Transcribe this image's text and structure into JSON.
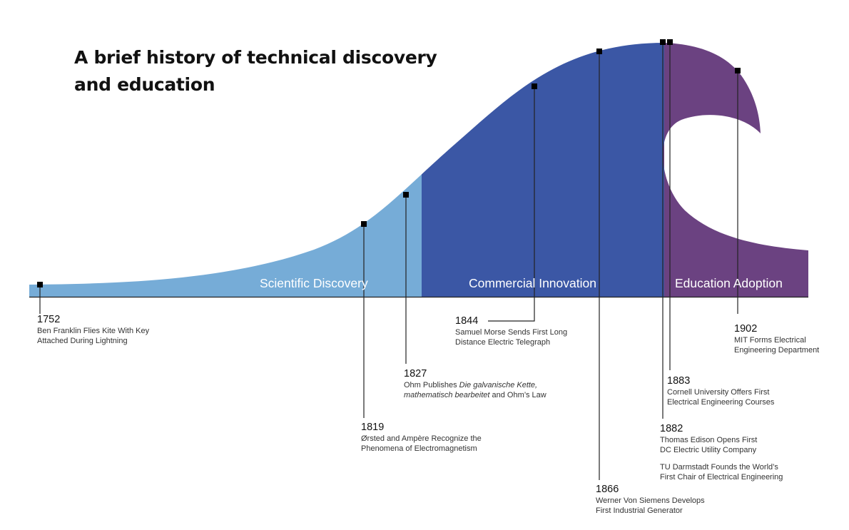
{
  "title_line1": "A brief history of technical discovery",
  "title_line2": "and education",
  "colors": {
    "scientific": "#76acd7",
    "commercial": "#3b57a5",
    "education": "#6b4281",
    "line": "#222222",
    "marker": "#000000"
  },
  "phases": [
    {
      "label": "Scientific Discovery"
    },
    {
      "label": "Commercial Innovation"
    },
    {
      "label": "Education Adoption"
    }
  ],
  "events": [
    {
      "year": "1752",
      "desc1": "Ben Franklin Flies Kite With Key",
      "desc2": "Attached During Lightning"
    },
    {
      "year": "1819",
      "desc1": "Ørsted and Ampère Recognize the",
      "desc2": "Phenomena of Electromagnetism"
    },
    {
      "year": "1827",
      "desc1_prefix": "Ohm Publishes ",
      "desc1_italic": "Die galvanische Kette,",
      "desc2_italic": "mathematisch bearbeitet",
      "desc2_suffix": " and Ohm’s Law"
    },
    {
      "year": "1844",
      "desc1": "Samuel Morse Sends First Long",
      "desc2": "Distance Electric Telegraph"
    },
    {
      "year": "1866",
      "desc1": "Werner Von Siemens Develops",
      "desc2": "First Industrial Generator"
    },
    {
      "year": "1882",
      "desc1": "Thomas Edison Opens First",
      "desc2": "DC Electric Utility Company",
      "desc3": "TU Darmstadt Founds the World’s",
      "desc4": "First Chair of Electrical Engineering"
    },
    {
      "year": "1883",
      "desc1": "Cornell University Offers First",
      "desc2": "Electrical Engineering Courses"
    },
    {
      "year": "1902",
      "desc1": "MIT Forms Electrical",
      "desc2": "Engineering Department"
    }
  ]
}
